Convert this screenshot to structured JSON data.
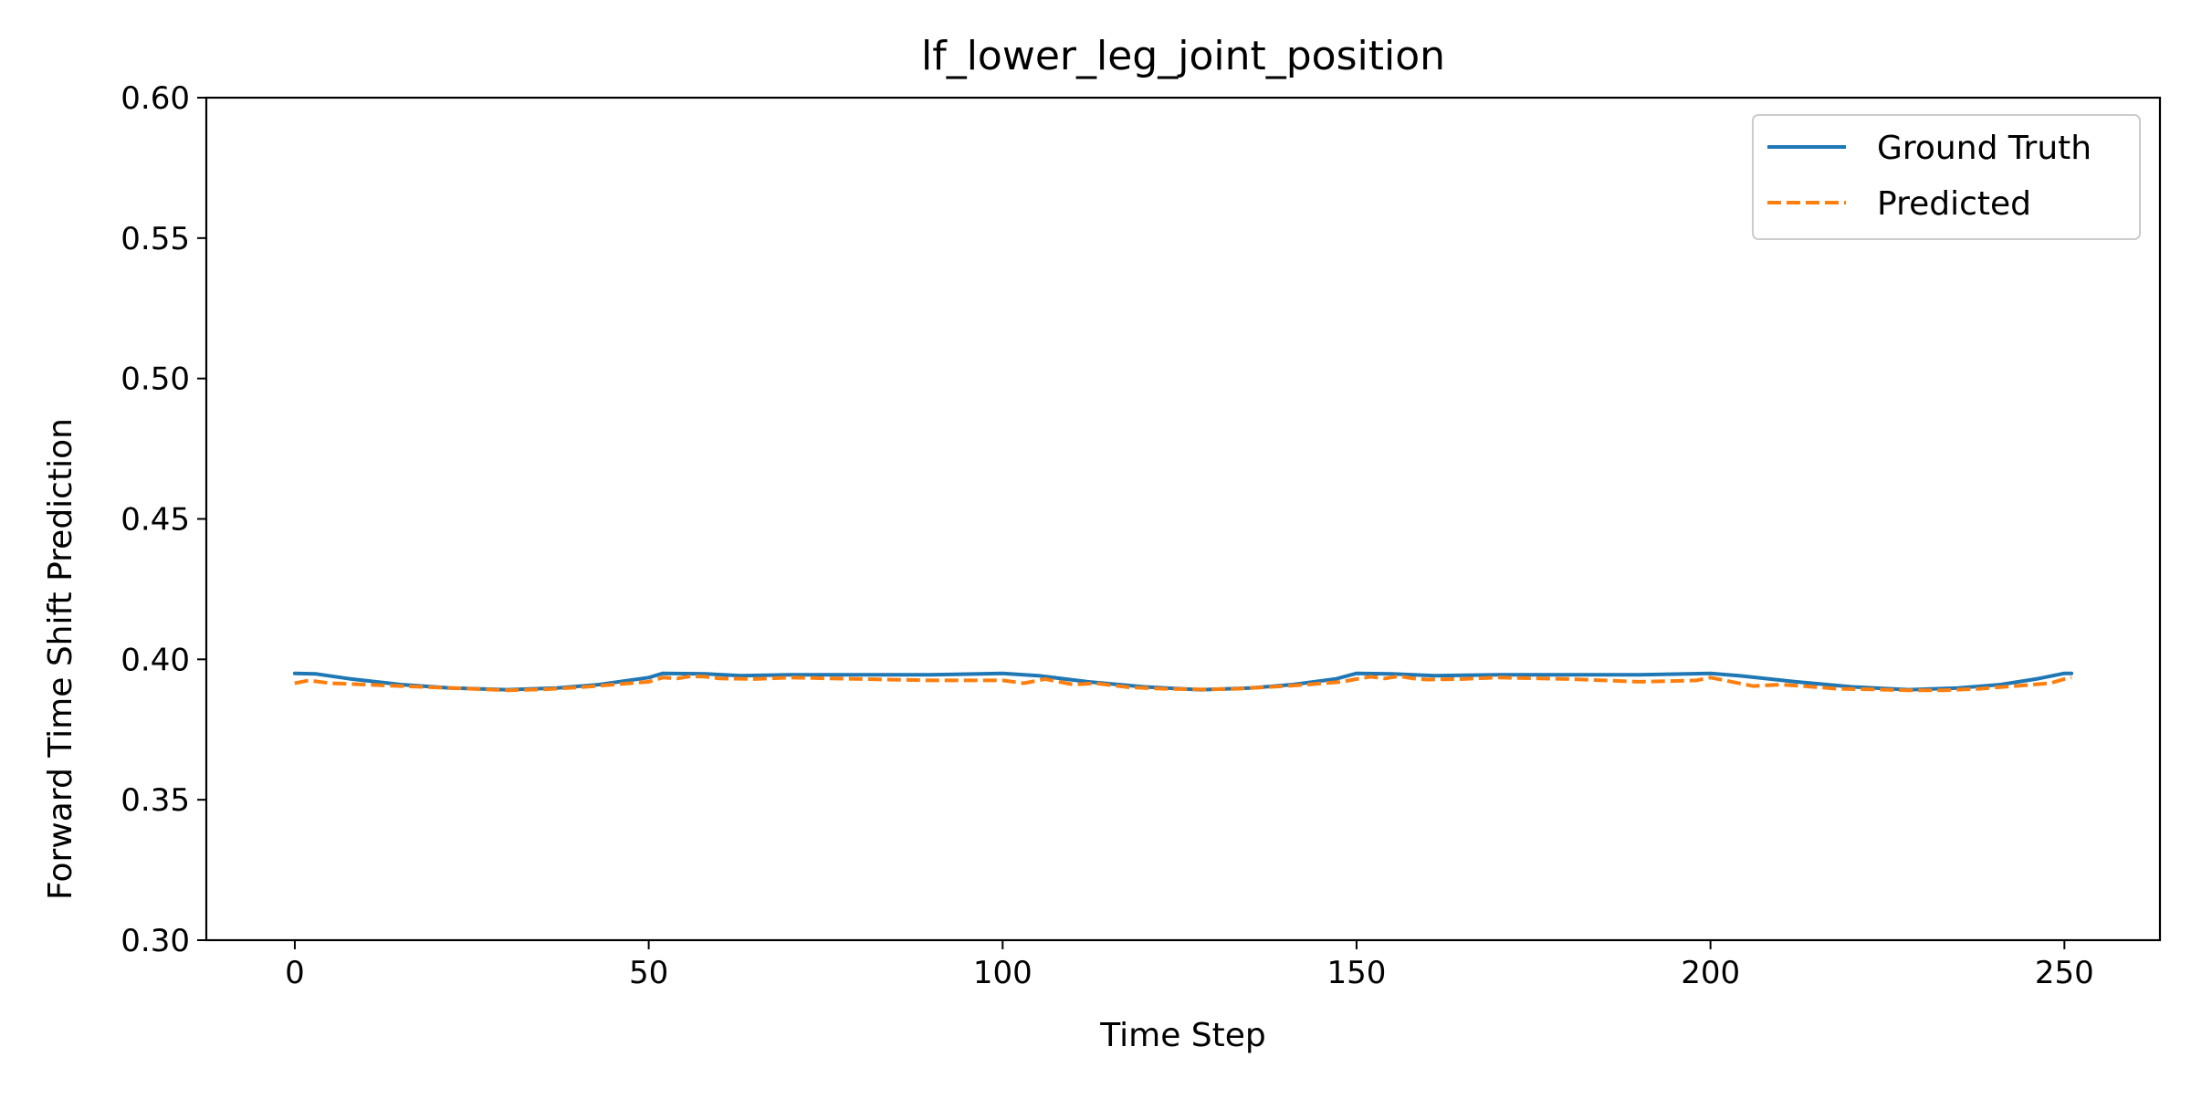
{
  "chart_data": {
    "type": "line",
    "title": "lf_lower_leg_joint_position",
    "xlabel": "Time Step",
    "ylabel": "Forward Time Shift Prediction",
    "xlim": [
      -12.5,
      263.5
    ],
    "ylim": [
      0.3,
      0.6
    ],
    "xticks": [
      0,
      50,
      100,
      150,
      200,
      250
    ],
    "xtick_labels": [
      "0",
      "50",
      "100",
      "150",
      "200",
      "250"
    ],
    "yticks": [
      0.3,
      0.35,
      0.4,
      0.45,
      0.5,
      0.55,
      0.6
    ],
    "ytick_labels": [
      "0.30",
      "0.35",
      "0.40",
      "0.45",
      "0.50",
      "0.55",
      "0.60"
    ],
    "grid": false,
    "legend_position": "top-right",
    "series": [
      {
        "name": "Ground Truth",
        "color": "#1f77b4",
        "style": "solid",
        "x": [
          0,
          3,
          8,
          15,
          22,
          30,
          37,
          43,
          50,
          52,
          58,
          63,
          70,
          80,
          90,
          100,
          105,
          112,
          120,
          128,
          135,
          141,
          147,
          150,
          155,
          161,
          170,
          180,
          190,
          200,
          204,
          212,
          220,
          228,
          235,
          241,
          246,
          250,
          251
        ],
        "y": [
          0.395,
          0.3948,
          0.393,
          0.391,
          0.3898,
          0.3892,
          0.3898,
          0.391,
          0.3935,
          0.395,
          0.3948,
          0.3942,
          0.3945,
          0.3945,
          0.3945,
          0.395,
          0.3942,
          0.392,
          0.3902,
          0.3892,
          0.3898,
          0.391,
          0.393,
          0.395,
          0.3948,
          0.3942,
          0.3945,
          0.3945,
          0.3945,
          0.395,
          0.3942,
          0.392,
          0.3902,
          0.3892,
          0.3898,
          0.391,
          0.393,
          0.395,
          0.395
        ]
      },
      {
        "name": "Predicted",
        "color": "#ff7f0e",
        "style": "dashed",
        "x": [
          0,
          2,
          5,
          10,
          15,
          20,
          25,
          30,
          35,
          40,
          45,
          50,
          52,
          54,
          56,
          58,
          60,
          65,
          70,
          80,
          90,
          100,
          103,
          106,
          110,
          113,
          118,
          123,
          128,
          133,
          138,
          143,
          148,
          150,
          152,
          154,
          156,
          158,
          160,
          165,
          170,
          180,
          190,
          198,
          200,
          203,
          206,
          210,
          213,
          218,
          223,
          228,
          233,
          238,
          243,
          248,
          250,
          251
        ],
        "y": [
          0.3915,
          0.3925,
          0.3915,
          0.391,
          0.3905,
          0.39,
          0.3895,
          0.389,
          0.3893,
          0.39,
          0.391,
          0.392,
          0.3935,
          0.3932,
          0.394,
          0.3938,
          0.3932,
          0.393,
          0.3935,
          0.393,
          0.3925,
          0.3925,
          0.3915,
          0.393,
          0.391,
          0.3915,
          0.39,
          0.3895,
          0.3893,
          0.3895,
          0.3902,
          0.391,
          0.392,
          0.393,
          0.3938,
          0.3932,
          0.394,
          0.3932,
          0.3928,
          0.393,
          0.3935,
          0.393,
          0.392,
          0.3925,
          0.3935,
          0.392,
          0.3905,
          0.391,
          0.3905,
          0.3895,
          0.3893,
          0.389,
          0.389,
          0.3895,
          0.3905,
          0.3915,
          0.393,
          0.3935
        ]
      }
    ]
  }
}
